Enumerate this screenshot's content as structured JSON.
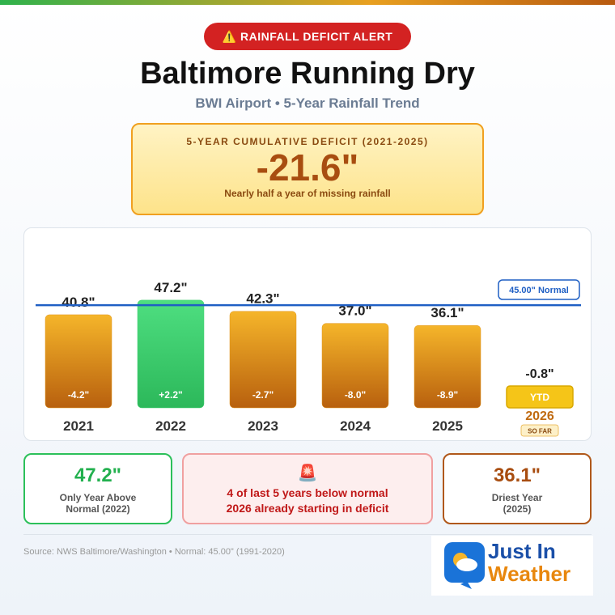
{
  "header": {
    "badge": "⚠️ RAINFALL DEFICIT ALERT",
    "title": "Baltimore Running Dry",
    "subtitle": "BWI Airport • 5-Year Rainfall Trend"
  },
  "deficit": {
    "label": "5-YEAR CUMULATIVE DEFICIT (2021-2025)",
    "value": "-21.6\"",
    "note": "Nearly half a year of missing rainfall"
  },
  "chart_data": {
    "type": "bar",
    "categories": [
      "2021",
      "2022",
      "2023",
      "2024",
      "2025"
    ],
    "values": [
      40.8,
      47.2,
      42.3,
      37.0,
      36.1
    ],
    "value_labels": [
      "40.8\"",
      "47.2\"",
      "42.3\"",
      "37.0\"",
      "36.1\""
    ],
    "departures": [
      -4.2,
      2.2,
      -2.7,
      -8.0,
      -8.9
    ],
    "departure_labels": [
      "-4.2\"",
      "+2.2\"",
      "-2.7\"",
      "-8.0\"",
      "-8.9\""
    ],
    "below_color": "#e0951c",
    "above_color": "#3ecf6e",
    "normal": 45.0,
    "normal_label": "45.00\" Normal",
    "normal_color": "#1f5fc4",
    "ylim": [
      0,
      50
    ],
    "ytd": {
      "category": "2026",
      "departure": -0.8,
      "departure_label": "-0.8\"",
      "label": "YTD",
      "tag": "SO FAR"
    }
  },
  "cards": [
    {
      "value": "47.2\"",
      "label": "Only Year Above Normal (2022)"
    },
    {
      "icon": "🚨",
      "lines": [
        "4 of last 5 years below normal",
        "2026 already starting in deficit"
      ]
    },
    {
      "value": "36.1\"",
      "label": "Driest Year (2025)"
    }
  ],
  "footer": {
    "source": "Source: NWS Baltimore/Washington • Normal: 45.00\" (1991-2020)",
    "logo_top": "Just In",
    "logo_bottom": "Weather"
  }
}
